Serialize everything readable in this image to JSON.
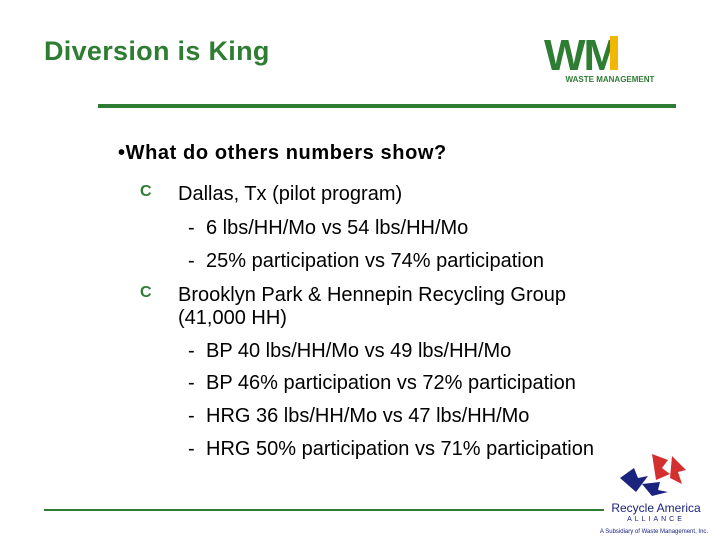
{
  "slide": {
    "title": "Diversion is King",
    "main_bullet": "•What do others numbers show?",
    "items": [
      {
        "text": "Dallas, Tx (pilot program)",
        "subitems": [
          "6 lbs/HH/Mo vs 54 lbs/HH/Mo",
          "25% participation vs 74% participation"
        ]
      },
      {
        "text_line1": "Brooklyn Park & Hennepin Recycling Group",
        "text_line2": "(41,000 HH)",
        "subitems": [
          "BP 40 lbs/HH/Mo vs 49 lbs/HH/Mo",
          "BP 46% participation vs 72% participation",
          "HRG 36 lbs/HH/Mo vs 47 lbs/HH/Mo",
          "HRG 50% participation vs 71% participation"
        ]
      }
    ],
    "bullet_mark": "C",
    "dash_mark": "-"
  },
  "logos": {
    "wm_letters": "WM",
    "wm_caption": "WASTE MANAGEMENT",
    "recycle_name": "Recycle America",
    "recycle_alliance": "ALLIANCE",
    "recycle_sub": "A Subsidiary of Waste Management, Inc."
  },
  "colors": {
    "accent_green": "#2e7d32",
    "wm_yellow": "#f2b705",
    "recycle_red": "#d32f2f",
    "recycle_blue": "#1a237e"
  }
}
